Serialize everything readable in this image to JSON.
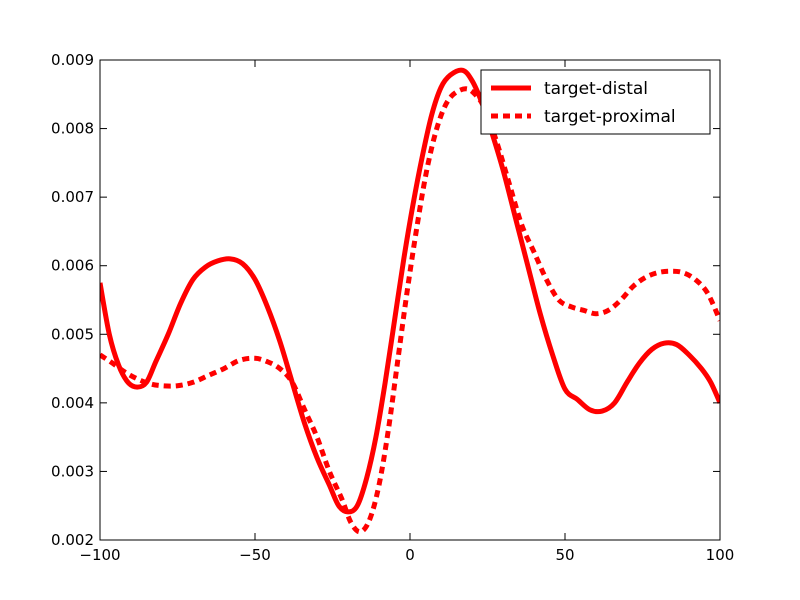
{
  "chart_data": {
    "type": "line",
    "title": "",
    "xlabel": "",
    "ylabel": "",
    "xlim": [
      -100,
      100
    ],
    "ylim": [
      0.002,
      0.009
    ],
    "xticks": [
      -100,
      -50,
      0,
      50,
      100
    ],
    "xtick_labels": [
      "−100",
      "−50",
      "0",
      "50",
      "100"
    ],
    "yticks": [
      0.002,
      0.003,
      0.004,
      0.005,
      0.006,
      0.007,
      0.008,
      0.009
    ],
    "ytick_labels": [
      "0.002",
      "0.003",
      "0.004",
      "0.005",
      "0.006",
      "0.007",
      "0.008",
      "0.009"
    ],
    "grid": false,
    "legend_position": "top-right",
    "series": [
      {
        "name": "target-distal",
        "color": "#ff0000",
        "style": "solid",
        "points": [
          [
            -100,
            0.00575
          ],
          [
            -97,
            0.005
          ],
          [
            -94,
            0.00455
          ],
          [
            -91,
            0.0043
          ],
          [
            -88,
            0.00423
          ],
          [
            -85,
            0.0043
          ],
          [
            -82,
            0.0046
          ],
          [
            -78,
            0.005
          ],
          [
            -74,
            0.00545
          ],
          [
            -70,
            0.0058
          ],
          [
            -66,
            0.00598
          ],
          [
            -62,
            0.00607
          ],
          [
            -58,
            0.0061
          ],
          [
            -54,
            0.00603
          ],
          [
            -50,
            0.0058
          ],
          [
            -46,
            0.0054
          ],
          [
            -42,
            0.0049
          ],
          [
            -38,
            0.0043
          ],
          [
            -34,
            0.0037
          ],
          [
            -30,
            0.0032
          ],
          [
            -26,
            0.0028
          ],
          [
            -23,
            0.0025
          ],
          [
            -20,
            0.00241
          ],
          [
            -17,
            0.0025
          ],
          [
            -14,
            0.0029
          ],
          [
            -11,
            0.0035
          ],
          [
            -8,
            0.0043
          ],
          [
            -5,
            0.0052
          ],
          [
            -2,
            0.0061
          ],
          [
            1,
            0.0069
          ],
          [
            4,
            0.0076
          ],
          [
            7,
            0.0082
          ],
          [
            10,
            0.0086
          ],
          [
            13,
            0.00878
          ],
          [
            17,
            0.00885
          ],
          [
            20,
            0.0087
          ],
          [
            23,
            0.0084
          ],
          [
            26,
            0.008
          ],
          [
            30,
            0.0074
          ],
          [
            34,
            0.0067
          ],
          [
            38,
            0.006
          ],
          [
            42,
            0.0053
          ],
          [
            46,
            0.0047
          ],
          [
            50,
            0.0042
          ],
          [
            54,
            0.00405
          ],
          [
            58,
            0.0039
          ],
          [
            62,
            0.00388
          ],
          [
            66,
            0.004
          ],
          [
            70,
            0.0043
          ],
          [
            74,
            0.00458
          ],
          [
            78,
            0.00478
          ],
          [
            82,
            0.00487
          ],
          [
            86,
            0.00485
          ],
          [
            90,
            0.0047
          ],
          [
            94,
            0.0045
          ],
          [
            97,
            0.0043
          ],
          [
            100,
            0.004
          ]
        ]
      },
      {
        "name": "target-proximal",
        "color": "#ff0000",
        "style": "dashed",
        "points": [
          [
            -100,
            0.0047
          ],
          [
            -96,
            0.00458
          ],
          [
            -92,
            0.00445
          ],
          [
            -88,
            0.00435
          ],
          [
            -84,
            0.00428
          ],
          [
            -80,
            0.00425
          ],
          [
            -75,
            0.00425
          ],
          [
            -70,
            0.0043
          ],
          [
            -65,
            0.0044
          ],
          [
            -60,
            0.0045
          ],
          [
            -55,
            0.00462
          ],
          [
            -50,
            0.00465
          ],
          [
            -46,
            0.0046
          ],
          [
            -42,
            0.0045
          ],
          [
            -38,
            0.0043
          ],
          [
            -34,
            0.0039
          ],
          [
            -30,
            0.0035
          ],
          [
            -26,
            0.003
          ],
          [
            -22,
            0.0026
          ],
          [
            -19,
            0.00225
          ],
          [
            -16,
            0.00212
          ],
          [
            -13,
            0.0023
          ],
          [
            -10,
            0.0028
          ],
          [
            -7,
            0.0036
          ],
          [
            -4,
            0.0046
          ],
          [
            -1,
            0.0056
          ],
          [
            2,
            0.0065
          ],
          [
            5,
            0.0073
          ],
          [
            8,
            0.0079
          ],
          [
            11,
            0.0083
          ],
          [
            14,
            0.0085
          ],
          [
            18,
            0.00858
          ],
          [
            21,
            0.0085
          ],
          [
            24,
            0.0083
          ],
          [
            28,
            0.0078
          ],
          [
            32,
            0.0072
          ],
          [
            36,
            0.0066
          ],
          [
            40,
            0.0062
          ],
          [
            44,
            0.0058
          ],
          [
            48,
            0.0055
          ],
          [
            52,
            0.0054
          ],
          [
            56,
            0.00535
          ],
          [
            60,
            0.0053
          ],
          [
            64,
            0.00535
          ],
          [
            68,
            0.0055
          ],
          [
            72,
            0.0057
          ],
          [
            76,
            0.00583
          ],
          [
            80,
            0.0059
          ],
          [
            84,
            0.00592
          ],
          [
            88,
            0.0059
          ],
          [
            92,
            0.0058
          ],
          [
            96,
            0.0056
          ],
          [
            100,
            0.0052
          ]
        ]
      }
    ]
  }
}
